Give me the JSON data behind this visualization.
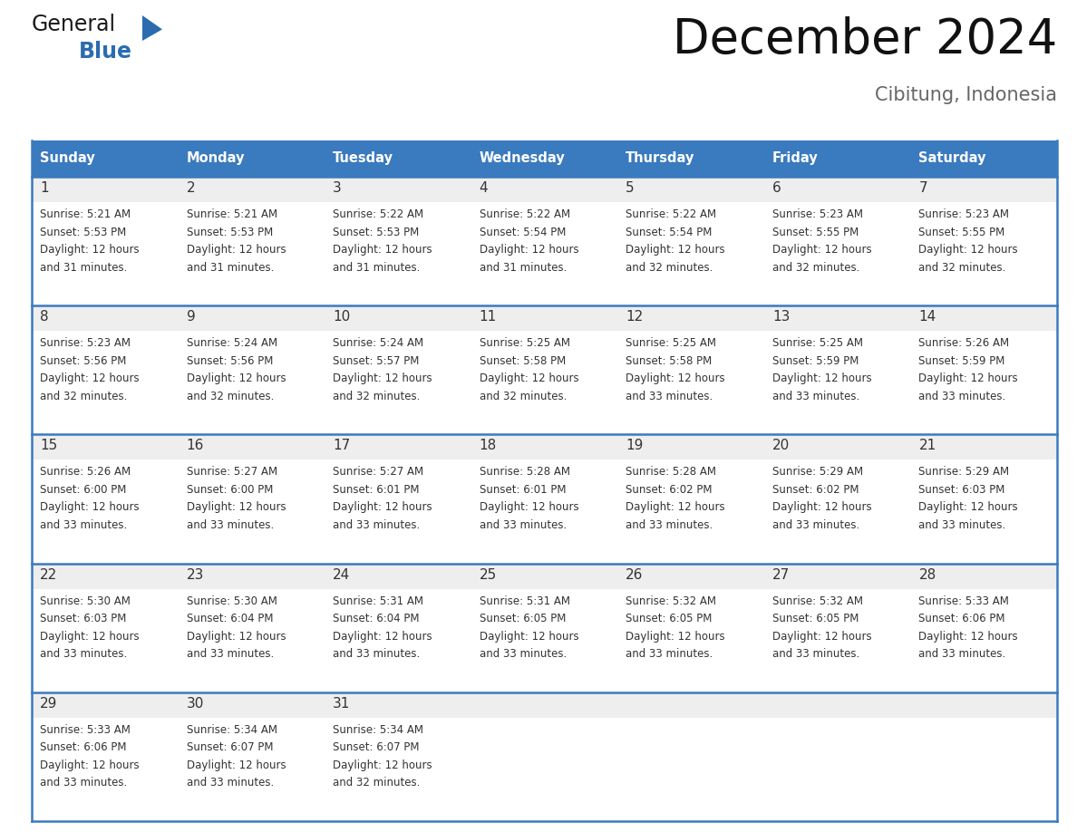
{
  "title": "December 2024",
  "subtitle": "Cibitung, Indonesia",
  "header_bg_color": "#3a7abf",
  "header_text_color": "#ffffff",
  "cell_bg_day": "#eeeeee",
  "cell_bg_text": "#ffffff",
  "day_headers": [
    "Sunday",
    "Monday",
    "Tuesday",
    "Wednesday",
    "Thursday",
    "Friday",
    "Saturday"
  ],
  "text_color": "#333333",
  "line_color": "#3a7abf",
  "separator_color": "#cccccc",
  "calendar_data": [
    [
      {
        "day": 1,
        "sunrise": "5:21 AM",
        "sunset": "5:53 PM",
        "daylight_hours": 12,
        "daylight_minutes": 31
      },
      {
        "day": 2,
        "sunrise": "5:21 AM",
        "sunset": "5:53 PM",
        "daylight_hours": 12,
        "daylight_minutes": 31
      },
      {
        "day": 3,
        "sunrise": "5:22 AM",
        "sunset": "5:53 PM",
        "daylight_hours": 12,
        "daylight_minutes": 31
      },
      {
        "day": 4,
        "sunrise": "5:22 AM",
        "sunset": "5:54 PM",
        "daylight_hours": 12,
        "daylight_minutes": 31
      },
      {
        "day": 5,
        "sunrise": "5:22 AM",
        "sunset": "5:54 PM",
        "daylight_hours": 12,
        "daylight_minutes": 32
      },
      {
        "day": 6,
        "sunrise": "5:23 AM",
        "sunset": "5:55 PM",
        "daylight_hours": 12,
        "daylight_minutes": 32
      },
      {
        "day": 7,
        "sunrise": "5:23 AM",
        "sunset": "5:55 PM",
        "daylight_hours": 12,
        "daylight_minutes": 32
      }
    ],
    [
      {
        "day": 8,
        "sunrise": "5:23 AM",
        "sunset": "5:56 PM",
        "daylight_hours": 12,
        "daylight_minutes": 32
      },
      {
        "day": 9,
        "sunrise": "5:24 AM",
        "sunset": "5:56 PM",
        "daylight_hours": 12,
        "daylight_minutes": 32
      },
      {
        "day": 10,
        "sunrise": "5:24 AM",
        "sunset": "5:57 PM",
        "daylight_hours": 12,
        "daylight_minutes": 32
      },
      {
        "day": 11,
        "sunrise": "5:25 AM",
        "sunset": "5:58 PM",
        "daylight_hours": 12,
        "daylight_minutes": 32
      },
      {
        "day": 12,
        "sunrise": "5:25 AM",
        "sunset": "5:58 PM",
        "daylight_hours": 12,
        "daylight_minutes": 33
      },
      {
        "day": 13,
        "sunrise": "5:25 AM",
        "sunset": "5:59 PM",
        "daylight_hours": 12,
        "daylight_minutes": 33
      },
      {
        "day": 14,
        "sunrise": "5:26 AM",
        "sunset": "5:59 PM",
        "daylight_hours": 12,
        "daylight_minutes": 33
      }
    ],
    [
      {
        "day": 15,
        "sunrise": "5:26 AM",
        "sunset": "6:00 PM",
        "daylight_hours": 12,
        "daylight_minutes": 33
      },
      {
        "day": 16,
        "sunrise": "5:27 AM",
        "sunset": "6:00 PM",
        "daylight_hours": 12,
        "daylight_minutes": 33
      },
      {
        "day": 17,
        "sunrise": "5:27 AM",
        "sunset": "6:01 PM",
        "daylight_hours": 12,
        "daylight_minutes": 33
      },
      {
        "day": 18,
        "sunrise": "5:28 AM",
        "sunset": "6:01 PM",
        "daylight_hours": 12,
        "daylight_minutes": 33
      },
      {
        "day": 19,
        "sunrise": "5:28 AM",
        "sunset": "6:02 PM",
        "daylight_hours": 12,
        "daylight_minutes": 33
      },
      {
        "day": 20,
        "sunrise": "5:29 AM",
        "sunset": "6:02 PM",
        "daylight_hours": 12,
        "daylight_minutes": 33
      },
      {
        "day": 21,
        "sunrise": "5:29 AM",
        "sunset": "6:03 PM",
        "daylight_hours": 12,
        "daylight_minutes": 33
      }
    ],
    [
      {
        "day": 22,
        "sunrise": "5:30 AM",
        "sunset": "6:03 PM",
        "daylight_hours": 12,
        "daylight_minutes": 33
      },
      {
        "day": 23,
        "sunrise": "5:30 AM",
        "sunset": "6:04 PM",
        "daylight_hours": 12,
        "daylight_minutes": 33
      },
      {
        "day": 24,
        "sunrise": "5:31 AM",
        "sunset": "6:04 PM",
        "daylight_hours": 12,
        "daylight_minutes": 33
      },
      {
        "day": 25,
        "sunrise": "5:31 AM",
        "sunset": "6:05 PM",
        "daylight_hours": 12,
        "daylight_minutes": 33
      },
      {
        "day": 26,
        "sunrise": "5:32 AM",
        "sunset": "6:05 PM",
        "daylight_hours": 12,
        "daylight_minutes": 33
      },
      {
        "day": 27,
        "sunrise": "5:32 AM",
        "sunset": "6:05 PM",
        "daylight_hours": 12,
        "daylight_minutes": 33
      },
      {
        "day": 28,
        "sunrise": "5:33 AM",
        "sunset": "6:06 PM",
        "daylight_hours": 12,
        "daylight_minutes": 33
      }
    ],
    [
      {
        "day": 29,
        "sunrise": "5:33 AM",
        "sunset": "6:06 PM",
        "daylight_hours": 12,
        "daylight_minutes": 33
      },
      {
        "day": 30,
        "sunrise": "5:34 AM",
        "sunset": "6:07 PM",
        "daylight_hours": 12,
        "daylight_minutes": 33
      },
      {
        "day": 31,
        "sunrise": "5:34 AM",
        "sunset": "6:07 PM",
        "daylight_hours": 12,
        "daylight_minutes": 32
      },
      null,
      null,
      null,
      null
    ]
  ],
  "logo_general_color": "#1a1a1a",
  "logo_blue_color": "#2b6cb0",
  "figsize": [
    11.88,
    9.18
  ],
  "dpi": 100
}
